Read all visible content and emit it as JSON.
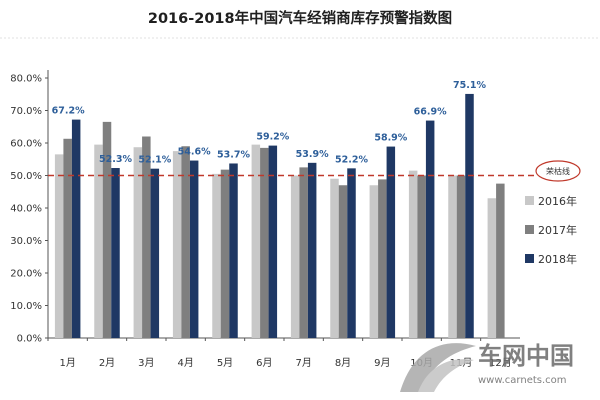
{
  "chart_data": {
    "type": "bar",
    "title": "2016-2018年中国汽车经销商库存预警指数图",
    "xlabel": "",
    "ylabel": "",
    "ylim": [
      0,
      80
    ],
    "yticks": [
      "0.0%",
      "10.0%",
      "20.0%",
      "30.0%",
      "40.0%",
      "50.0%",
      "60.0%",
      "70.0%",
      "80.0%"
    ],
    "categories": [
      "1月",
      "2月",
      "3月",
      "4月",
      "5月",
      "6月",
      "7月",
      "8月",
      "9月",
      "10月",
      "11月",
      "12月"
    ],
    "series": [
      {
        "name": "2016年",
        "color": "#c8c8c8",
        "values": [
          56.5,
          59.5,
          58.7,
          57.5,
          50.5,
          59.5,
          50.0,
          49.0,
          47.0,
          51.5,
          50.0,
          43.0
        ]
      },
      {
        "name": "2017年",
        "color": "#7f7f7f",
        "values": [
          61.3,
          66.5,
          62.0,
          59.0,
          51.8,
          58.5,
          52.5,
          47.0,
          48.8,
          50.0,
          50.0,
          47.5
        ]
      },
      {
        "name": "2018年",
        "color": "#1f3864",
        "values": [
          67.2,
          52.3,
          52.1,
          54.6,
          53.7,
          59.2,
          53.9,
          52.2,
          58.9,
          66.9,
          75.1,
          null
        ]
      }
    ],
    "data_labels": [
      "67.2%",
      "52.3%",
      "52.1%",
      "54.6%",
      "53.7%",
      "59.2%",
      "53.9%",
      "52.2%",
      "58.9%",
      "66.9%",
      "75.1%",
      ""
    ],
    "reference_line": {
      "value": 50,
      "label": "荣枯线",
      "color": "#c0392b"
    },
    "legend_position": "right",
    "grid": false
  },
  "watermark": {
    "text": "车网中国",
    "url": "www.carnets.com"
  }
}
